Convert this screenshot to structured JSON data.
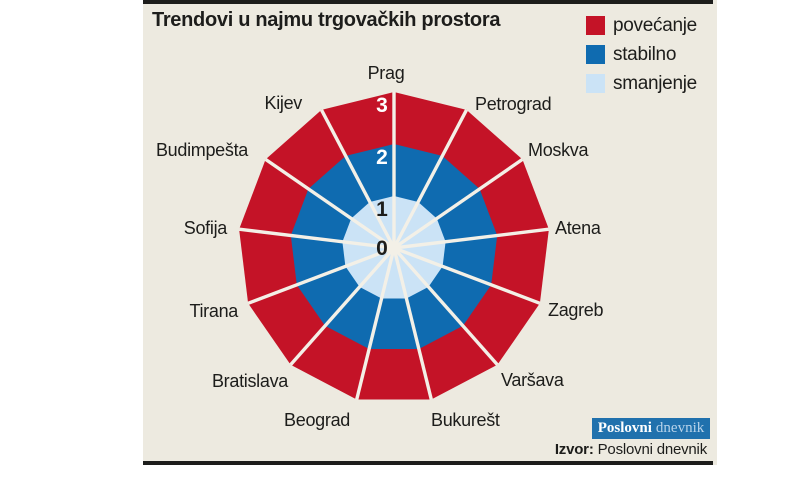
{
  "title": "Trendovi u najmu trgovačkih prostora",
  "legend": {
    "items": [
      {
        "label": "povećanje",
        "color": "#c41327"
      },
      {
        "label": "stabilno",
        "color": "#0f6bb0"
      },
      {
        "label": "smanjenje",
        "color": "#cbe3f6"
      }
    ]
  },
  "chart_data": {
    "type": "radar",
    "title": "Trendovi u najmu trgovačkih prostora",
    "categories": [
      "Prag",
      "Petrograd",
      "Moskva",
      "Atena",
      "Zagreb",
      "Varšava",
      "Bukurešt",
      "Beograd",
      "Bratislava",
      "Tirana",
      "Sofija",
      "Budimpešta",
      "Kijev"
    ],
    "axis": {
      "levels": [
        0,
        1,
        2,
        3
      ],
      "min": 0,
      "max": 3
    },
    "rings": [
      {
        "label": "smanjenje",
        "from": 0,
        "to": 1,
        "color": "#cbe3f6"
      },
      {
        "label": "stabilno",
        "from": 1,
        "to": 2,
        "color": "#0f6bb0"
      },
      {
        "label": "povećanje",
        "from": 2,
        "to": 3,
        "color": "#c41327"
      }
    ],
    "uniform_rings": true,
    "legend_position": "top-right",
    "grid": "radial-spokes",
    "spoke_color": "#f3f0e7",
    "background_color": "#edeae0"
  },
  "footer": {
    "brand": {
      "part1": "Poslovni",
      "part2": "dnevnik",
      "bg": "#2071ad"
    },
    "source_label": "Izvor:",
    "source_value": "Poslovni dnevnik"
  }
}
